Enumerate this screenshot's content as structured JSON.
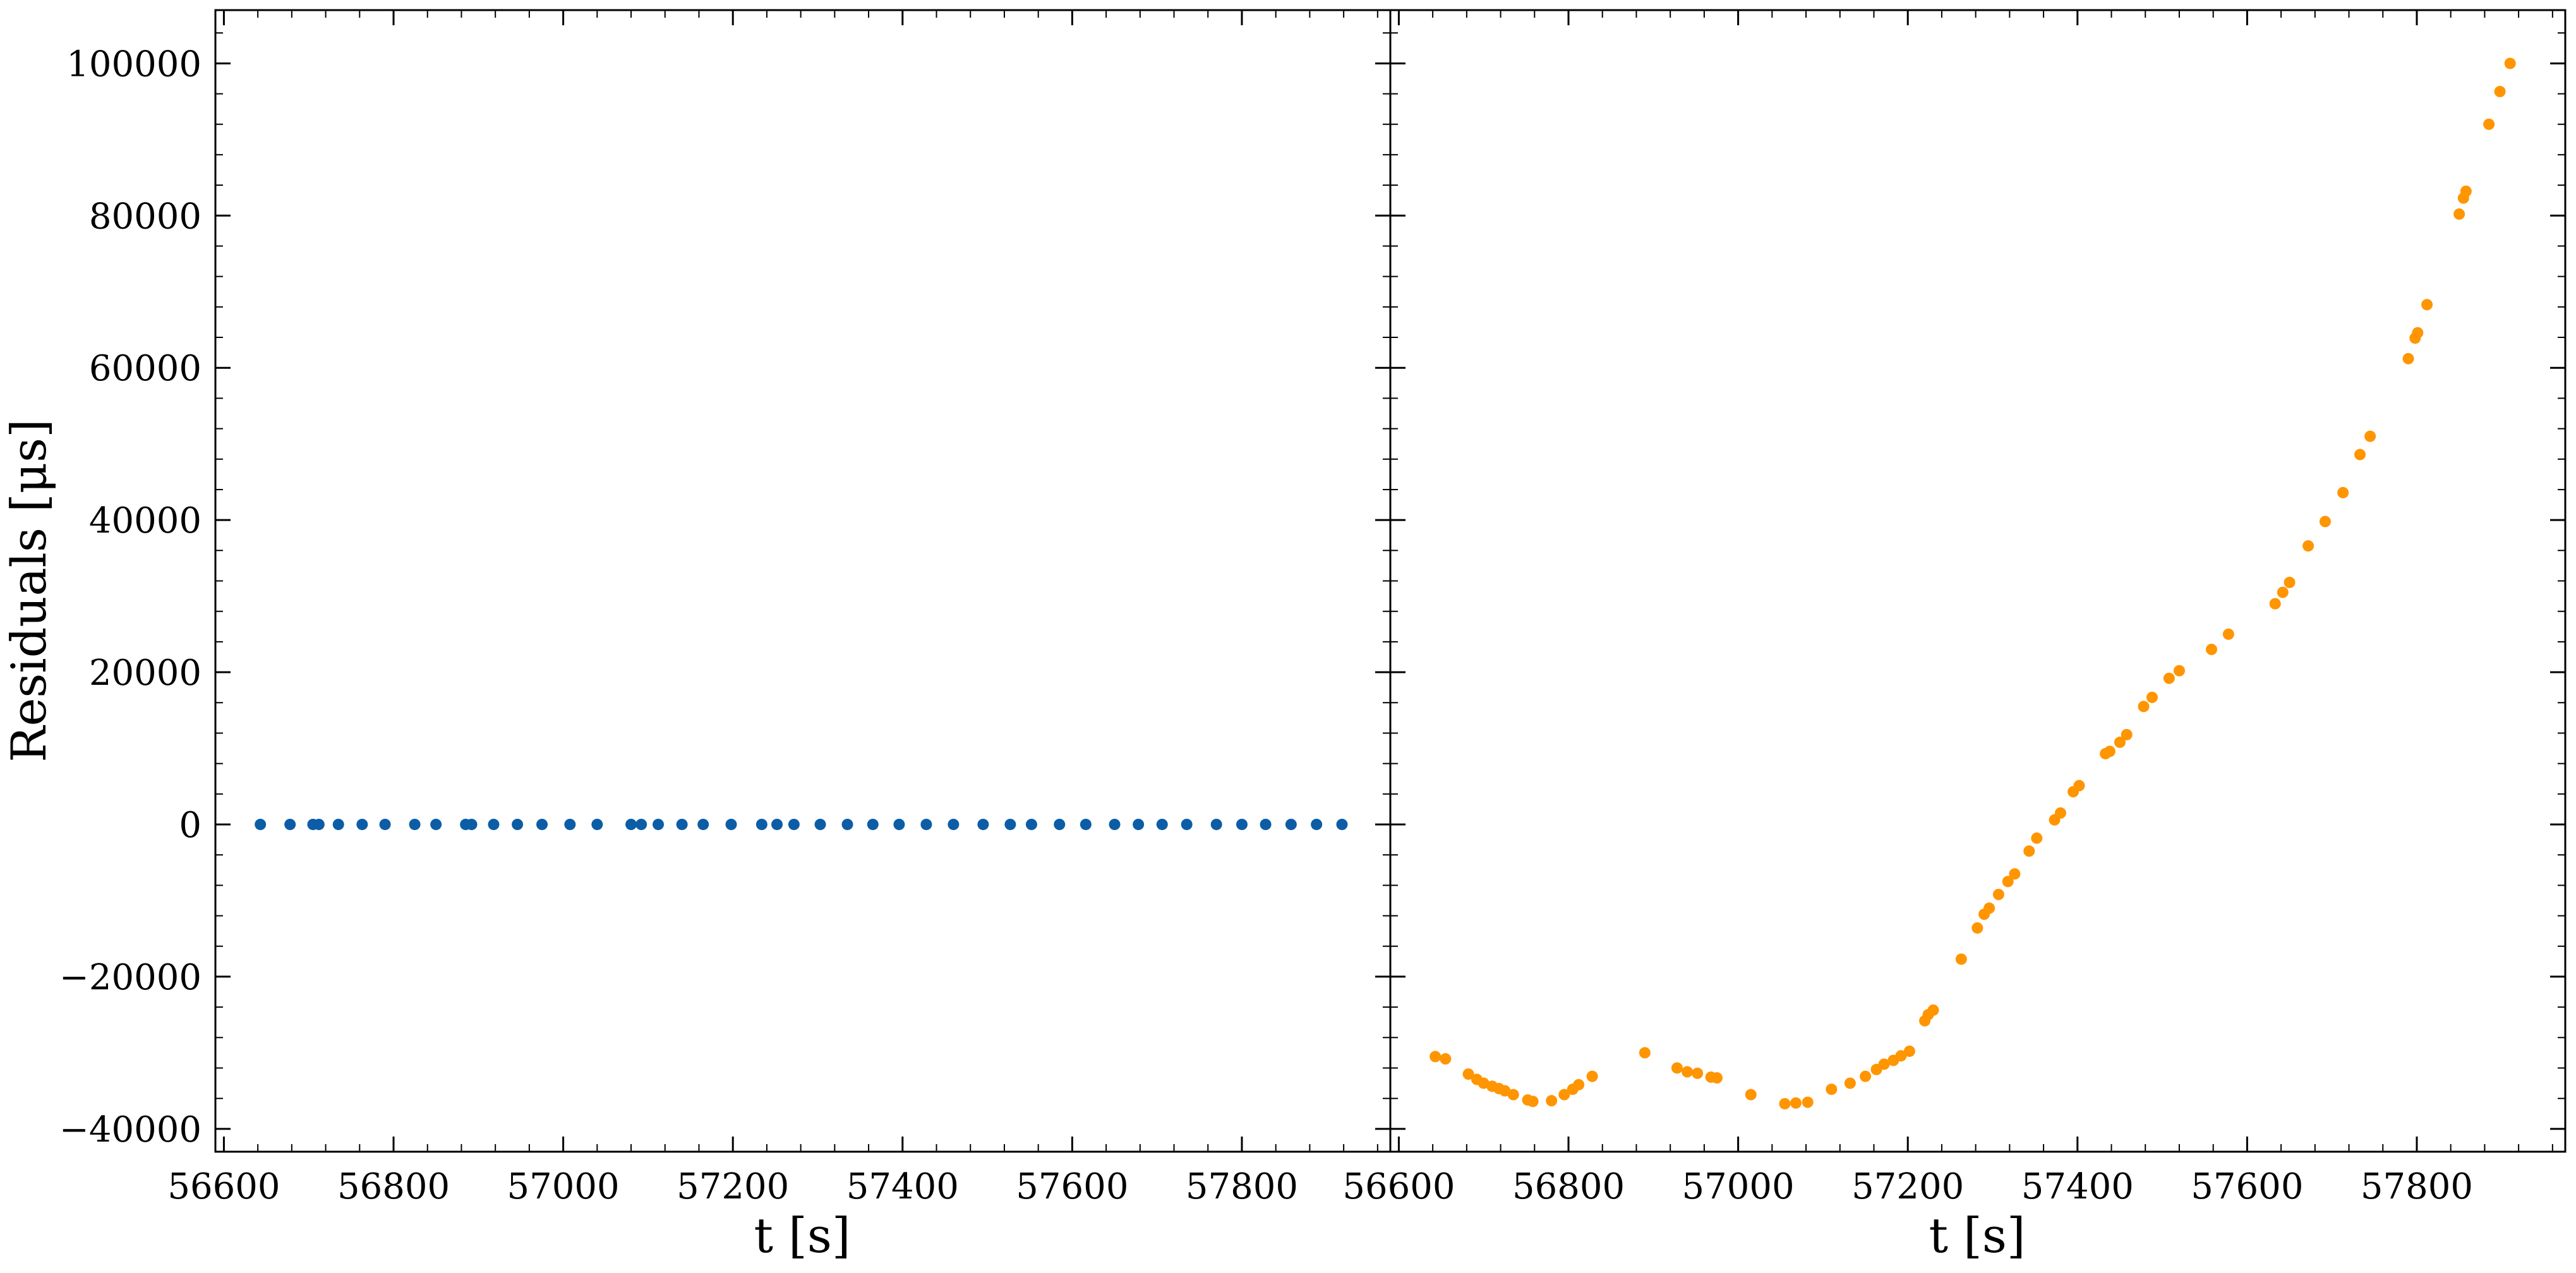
{
  "chart_data": [
    {
      "type": "scatter",
      "panel": "left",
      "xlabel": "t [s]",
      "ylabel": "Residuals [μs]",
      "xlim": [
        56590,
        57975
      ],
      "ylim": [
        -43000,
        107000
      ],
      "xticks": [
        56600,
        56800,
        57000,
        57200,
        57400,
        57600,
        57800
      ],
      "xtick_labels": [
        "56600",
        "56800",
        "57000",
        "57200",
        "57400",
        "57600",
        "57800"
      ],
      "yticks": [
        -40000,
        -20000,
        0,
        20000,
        40000,
        60000,
        80000,
        100000
      ],
      "ytick_labels": [
        "−40000",
        "−20000",
        "0",
        "20000",
        "40000",
        "60000",
        "80000",
        "100000"
      ],
      "grid": false,
      "series": [
        {
          "color": "#0C5DA5",
          "points": [
            [
              56643,
              0
            ],
            [
              56678,
              0
            ],
            [
              56705,
              0
            ],
            [
              56712,
              0
            ],
            [
              56735,
              0
            ],
            [
              56763,
              0
            ],
            [
              56790,
              0
            ],
            [
              56825,
              0
            ],
            [
              56850,
              0
            ],
            [
              56885,
              0
            ],
            [
              56892,
              0
            ],
            [
              56918,
              0
            ],
            [
              56946,
              0
            ],
            [
              56975,
              0
            ],
            [
              57008,
              0
            ],
            [
              57040,
              0
            ],
            [
              57080,
              0
            ],
            [
              57092,
              0
            ],
            [
              57112,
              0
            ],
            [
              57140,
              0
            ],
            [
              57165,
              0
            ],
            [
              57198,
              0
            ],
            [
              57234,
              0
            ],
            [
              57252,
              0
            ],
            [
              57272,
              0
            ],
            [
              57303,
              0
            ],
            [
              57335,
              0
            ],
            [
              57365,
              0
            ],
            [
              57396,
              0
            ],
            [
              57428,
              0
            ],
            [
              57460,
              0
            ],
            [
              57495,
              0
            ],
            [
              57527,
              0
            ],
            [
              57552,
              0
            ],
            [
              57585,
              0
            ],
            [
              57616,
              0
            ],
            [
              57650,
              0
            ],
            [
              57678,
              0
            ],
            [
              57706,
              0
            ],
            [
              57735,
              0
            ],
            [
              57770,
              0
            ],
            [
              57800,
              0
            ],
            [
              57828,
              0
            ],
            [
              57858,
              0
            ],
            [
              57888,
              0
            ],
            [
              57918,
              0
            ]
          ]
        }
      ]
    },
    {
      "type": "scatter",
      "panel": "right",
      "xlabel": "t [s]",
      "ylabel": "",
      "xlim": [
        56590,
        57975
      ],
      "ylim": [
        -43000,
        107000
      ],
      "xticks": [
        56600,
        56800,
        57000,
        57200,
        57400,
        57600,
        57800
      ],
      "xtick_labels": [
        "56600",
        "56800",
        "57000",
        "57200",
        "57400",
        "57600",
        "57800"
      ],
      "yticks": [
        -40000,
        -20000,
        0,
        20000,
        40000,
        60000,
        80000,
        100000
      ],
      "ytick_labels": [],
      "grid": false,
      "series": [
        {
          "color": "#FF9500",
          "points": [
            [
              56643,
              -30500
            ],
            [
              56655,
              -30800
            ],
            [
              56682,
              -32800
            ],
            [
              56692,
              -33500
            ],
            [
              56700,
              -34000
            ],
            [
              56710,
              -34400
            ],
            [
              56718,
              -34700
            ],
            [
              56725,
              -35000
            ],
            [
              56735,
              -35500
            ],
            [
              56752,
              -36200
            ],
            [
              56758,
              -36400
            ],
            [
              56780,
              -36300
            ],
            [
              56795,
              -35500
            ],
            [
              56805,
              -34800
            ],
            [
              56812,
              -34200
            ],
            [
              56828,
              -33100
            ],
            [
              56890,
              -30000
            ],
            [
              56928,
              -32000
            ],
            [
              56940,
              -32500
            ],
            [
              56952,
              -32700
            ],
            [
              56968,
              -33200
            ],
            [
              56975,
              -33300
            ],
            [
              57015,
              -35500
            ],
            [
              57055,
              -36700
            ],
            [
              57068,
              -36600
            ],
            [
              57082,
              -36500
            ],
            [
              57110,
              -34800
            ],
            [
              57132,
              -34000
            ],
            [
              57150,
              -33100
            ],
            [
              57163,
              -32200
            ],
            [
              57172,
              -31500
            ],
            [
              57183,
              -31000
            ],
            [
              57192,
              -30400
            ],
            [
              57202,
              -29800
            ],
            [
              57220,
              -25800
            ],
            [
              57224,
              -25000
            ],
            [
              57230,
              -24400
            ],
            [
              57263,
              -17700
            ],
            [
              57282,
              -13600
            ],
            [
              57290,
              -11800
            ],
            [
              57296,
              -11000
            ],
            [
              57307,
              -9200
            ],
            [
              57318,
              -7500
            ],
            [
              57326,
              -6500
            ],
            [
              57343,
              -3500
            ],
            [
              57352,
              -1800
            ],
            [
              57373,
              600
            ],
            [
              57380,
              1500
            ],
            [
              57395,
              4300
            ],
            [
              57402,
              5100
            ],
            [
              57433,
              9300
            ],
            [
              57438,
              9600
            ],
            [
              57450,
              10800
            ],
            [
              57458,
              11800
            ],
            [
              57478,
              15500
            ],
            [
              57488,
              16700
            ],
            [
              57508,
              19200
            ],
            [
              57520,
              20200
            ],
            [
              57558,
              23000
            ],
            [
              57578,
              25000
            ],
            [
              57633,
              29000
            ],
            [
              57642,
              30500
            ],
            [
              57650,
              31800
            ],
            [
              57672,
              36600
            ],
            [
              57692,
              39800
            ],
            [
              57713,
              43600
            ],
            [
              57733,
              48600
            ],
            [
              57745,
              51000
            ],
            [
              57790,
              61200
            ],
            [
              57798,
              63900
            ],
            [
              57801,
              64600
            ],
            [
              57812,
              68300
            ],
            [
              57850,
              80200
            ],
            [
              57855,
              82300
            ],
            [
              57858,
              83200
            ],
            [
              57885,
              92000
            ],
            [
              57898,
              96300
            ],
            [
              57910,
              100000
            ]
          ]
        }
      ]
    }
  ]
}
